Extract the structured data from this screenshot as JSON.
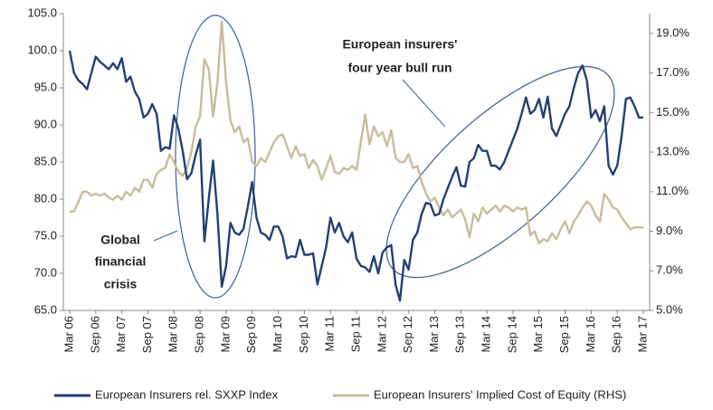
{
  "chart_data": {
    "type": "line",
    "categories": [
      "Mar 06",
      null,
      null,
      null,
      null,
      null,
      "Sep 06",
      null,
      null,
      null,
      null,
      null,
      "Mar 07",
      null,
      null,
      null,
      null,
      null,
      "Sep 07",
      null,
      null,
      null,
      null,
      null,
      "Mar 08",
      null,
      null,
      null,
      null,
      null,
      "Sep 08",
      null,
      null,
      null,
      null,
      null,
      "Mar 09",
      null,
      null,
      null,
      null,
      null,
      "Sep 09",
      null,
      null,
      null,
      null,
      null,
      "Mar 10",
      null,
      null,
      null,
      null,
      null,
      "Sep 10",
      null,
      null,
      null,
      null,
      null,
      "Mar 11",
      null,
      null,
      null,
      null,
      null,
      "Sep 11",
      null,
      null,
      null,
      null,
      null,
      "Mar 12",
      null,
      null,
      null,
      null,
      null,
      "Sep 12",
      null,
      null,
      null,
      null,
      null,
      "Mar 13",
      null,
      null,
      null,
      null,
      null,
      "Sep 13",
      null,
      null,
      null,
      null,
      null,
      "Mar 14",
      null,
      null,
      null,
      null,
      null,
      "Sep 14",
      null,
      null,
      null,
      null,
      null,
      "Mar 15",
      null,
      null,
      null,
      null,
      null,
      "Sep 15",
      null,
      null,
      null,
      null,
      null,
      "Mar 16",
      null,
      null,
      null,
      null,
      null,
      "Sep 16",
      null,
      null,
      null,
      null,
      null,
      "Mar 17"
    ],
    "series": [
      {
        "name": "European Insurers rel. SXXP Index",
        "color": "#243f75",
        "values": [
          100,
          97,
          96,
          95.5,
          94.8,
          97,
          99.2,
          98.5,
          98,
          97.5,
          98.3,
          97.5,
          99,
          95.8,
          96.5,
          94.5,
          93.5,
          91,
          91.5,
          92.8,
          91.5,
          86.5,
          87,
          86.8,
          91.3,
          89.5,
          86.5,
          82.7,
          83.5,
          86,
          88,
          74.3,
          80,
          85.2,
          78,
          68.2,
          71,
          76.8,
          75.5,
          75.2,
          76,
          79,
          82.3,
          77.5,
          75.5,
          75.2,
          74.5,
          76.3,
          76.3,
          75,
          72,
          72.3,
          72.2,
          74.5,
          72.5,
          72.5,
          72.7,
          68.5,
          71,
          73.5,
          77.5,
          75.5,
          76.8,
          75,
          74.2,
          75.5,
          72,
          71,
          70.8,
          70.2,
          72.3,
          70,
          72.8,
          73.5,
          73.8,
          68.5,
          66.3,
          71.8,
          70.5,
          74.5,
          75.5,
          78,
          79.5,
          79.3,
          77.8,
          78,
          80,
          81.5,
          83,
          84.3,
          81.8,
          81.7,
          85,
          85.5,
          87.3,
          86.5,
          86.5,
          84.5,
          84.5,
          84,
          85,
          86.5,
          88,
          89.5,
          91.5,
          93.7,
          91.5,
          92,
          93.5,
          91,
          93.8,
          89.5,
          88.5,
          90,
          91.5,
          92.5,
          95,
          97,
          98,
          96,
          91,
          92,
          90.5,
          92.5,
          84.5,
          83.3,
          84.5,
          88.5,
          93.5,
          93.7,
          92.5,
          91,
          91
        ]
      },
      {
        "name": "European Insurers' Implied Cost of Equity (RHS)",
        "color": "#c8bc9b",
        "axis": "y2",
        "values": [
          10,
          10,
          10.5,
          11,
          11,
          10.8,
          10.9,
          10.8,
          10.9,
          10.7,
          10.6,
          10.8,
          10.6,
          11,
          10.8,
          11.2,
          11,
          11.6,
          11.6,
          11.2,
          11.9,
          12.1,
          12.2,
          12.9,
          12.5,
          12,
          11.8,
          12.2,
          13,
          14.3,
          14.8,
          17.7,
          17.2,
          14.8,
          16.5,
          19.6,
          16.5,
          14.6,
          14,
          14.3,
          13.5,
          13.7,
          12.5,
          12.3,
          12.7,
          12.5,
          13,
          13.5,
          13.8,
          13.9,
          13.3,
          12.7,
          13.3,
          12.8,
          12.9,
          12.2,
          12.6,
          12.3,
          11.6,
          12.2,
          12.8,
          12,
          11.9,
          12.2,
          12.1,
          12.3,
          12.1,
          13.5,
          14.9,
          13.4,
          14.3,
          13.8,
          14,
          13.3,
          14.1,
          12.7,
          12.5,
          12.5,
          12.9,
          12.2,
          12.3,
          11.5,
          10.9,
          10.5,
          10.7,
          10.2,
          9.8,
          10.1,
          9.7,
          9.9,
          10.1,
          9.6,
          8.7,
          9.9,
          9.5,
          10.2,
          9.9,
          10.1,
          10.3,
          10,
          10.3,
          10.2,
          10,
          10.2,
          10.1,
          10.2,
          8.8,
          9,
          8.4,
          8.6,
          8.5,
          8.9,
          8.6,
          9.1,
          9.5,
          8.9,
          9.5,
          9.8,
          10.2,
          10.5,
          10.3,
          9.8,
          9.5,
          10.9,
          10.6,
          10.2,
          10.1,
          9.7,
          9.4,
          9.1,
          9.2,
          9.2,
          9.2
        ]
      }
    ],
    "ylim": [
      65,
      105
    ],
    "yticks": [
      {
        "value": 65,
        "label": "65.0"
      },
      {
        "value": 70,
        "label": "70.0"
      },
      {
        "value": 75,
        "label": "75.0"
      },
      {
        "value": 80,
        "label": "80.0"
      },
      {
        "value": 85,
        "label": "85.0"
      },
      {
        "value": 90,
        "label": "90.0"
      },
      {
        "value": 95,
        "label": "95.0"
      },
      {
        "value": 100,
        "label": "100.0"
      },
      {
        "value": 105,
        "label": "105.0"
      }
    ],
    "y2lim": [
      5,
      20
    ],
    "y2ticks": [
      {
        "value": 5,
        "label": "5.0%"
      },
      {
        "value": 7,
        "label": "7.0%"
      },
      {
        "value": 9,
        "label": "9.0%"
      },
      {
        "value": 11,
        "label": "11.0%"
      },
      {
        "value": 13,
        "label": "13.0%"
      },
      {
        "value": 15,
        "label": "15.0%"
      },
      {
        "value": 17,
        "label": "17.0%"
      },
      {
        "value": 19,
        "label": "19.0%"
      }
    ],
    "grid": false,
    "legend": "bottom",
    "annotations": [
      {
        "text": [
          "Global",
          "financial",
          "crisis"
        ]
      },
      {
        "text": [
          "European insurers'",
          "four year bull run"
        ]
      }
    ]
  }
}
